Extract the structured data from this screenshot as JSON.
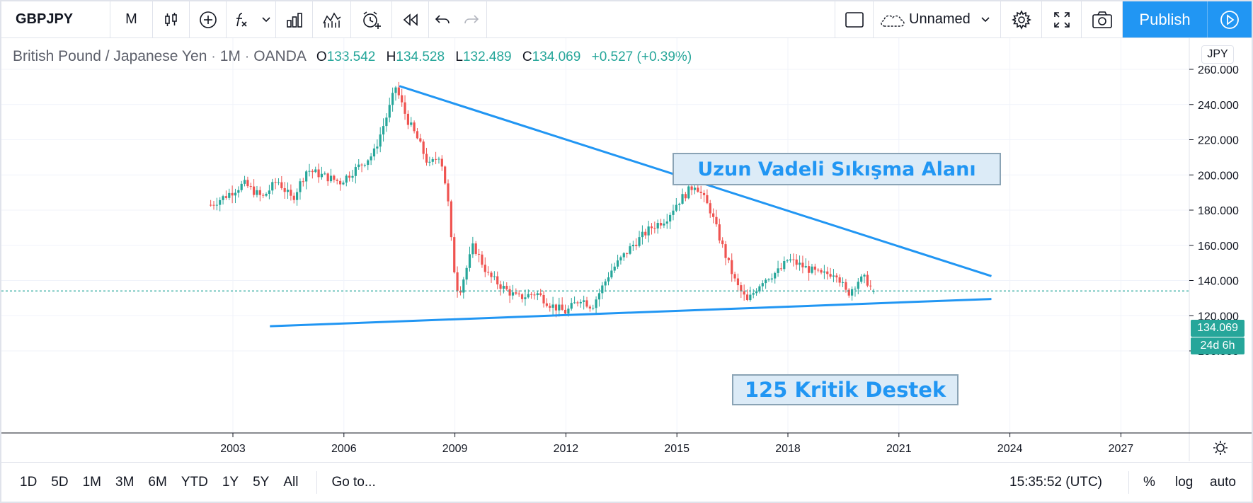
{
  "toolbar": {
    "symbol": "GBPJPY",
    "interval": "M",
    "layout_name": "Unnamed",
    "publish_label": "Publish"
  },
  "legend": {
    "name": "British Pound / Japanese Yen",
    "interval": "1M",
    "exchange": "OANDA",
    "o_label": "O",
    "o": "133.542",
    "h_label": "H",
    "h": "134.528",
    "l_label": "L",
    "l": "132.489",
    "c_label": "C",
    "c": "134.069",
    "change": "+0.527 (+0.39%)"
  },
  "currency": "JPY",
  "price_tag": {
    "last": "134.069",
    "countdown": "24d 6h"
  },
  "annotations": {
    "top": "Uzun Vadeli Sıkışma Alanı",
    "bottom": "125 Kritik Destek"
  },
  "colors": {
    "up": "#26a69a",
    "down": "#ef5350",
    "trendline": "#2196f3",
    "accent": "#2196f3"
  },
  "chart_data": {
    "type": "candlestick",
    "symbol": "GBPJPY",
    "interval": "1M",
    "yticks": [
      "100.000",
      "120.000",
      "140.000",
      "160.000",
      "180.000",
      "200.000",
      "220.000",
      "240.000",
      "260.000"
    ],
    "ylim": [
      80,
      270
    ],
    "xticks": [
      "2003",
      "2006",
      "2009",
      "2012",
      "2015",
      "2018",
      "2021",
      "2024",
      "2027"
    ],
    "xlim": [
      2000.4,
      2029.2
    ],
    "last_price": 134.069,
    "path": [
      [
        2002.4,
        183
      ],
      [
        2002.8,
        188
      ],
      [
        2003.3,
        195
      ],
      [
        2003.8,
        187
      ],
      [
        2004.2,
        197
      ],
      [
        2004.6,
        186
      ],
      [
        2005.0,
        203
      ],
      [
        2005.5,
        199
      ],
      [
        2005.9,
        196
      ],
      [
        2006.3,
        203
      ],
      [
        2006.8,
        212
      ],
      [
        2007.2,
        236
      ],
      [
        2007.4,
        250
      ],
      [
        2007.7,
        232
      ],
      [
        2008.0,
        220
      ],
      [
        2008.3,
        205
      ],
      [
        2008.6,
        212
      ],
      [
        2008.8,
        188
      ],
      [
        2008.95,
        150
      ],
      [
        2009.1,
        132
      ],
      [
        2009.5,
        160
      ],
      [
        2009.9,
        143
      ],
      [
        2010.3,
        136
      ],
      [
        2010.7,
        130
      ],
      [
        2011.2,
        133
      ],
      [
        2011.6,
        126
      ],
      [
        2012.0,
        122
      ],
      [
        2012.4,
        130
      ],
      [
        2012.7,
        125
      ],
      [
        2013.2,
        145
      ],
      [
        2013.8,
        160
      ],
      [
        2014.3,
        170
      ],
      [
        2014.7,
        175
      ],
      [
        2015.0,
        184
      ],
      [
        2015.5,
        195
      ],
      [
        2015.9,
        180
      ],
      [
        2016.3,
        155
      ],
      [
        2016.6,
        138
      ],
      [
        2016.9,
        128
      ],
      [
        2017.3,
        140
      ],
      [
        2017.8,
        146
      ],
      [
        2018.0,
        152
      ],
      [
        2018.5,
        147
      ],
      [
        2018.9,
        143
      ],
      [
        2019.3,
        145
      ],
      [
        2019.6,
        132
      ],
      [
        2019.9,
        140
      ],
      [
        2020.1,
        141
      ],
      [
        2020.3,
        134
      ]
    ],
    "trendlines": [
      {
        "x": [
          2007.5,
          2023.5
        ],
        "y": [
          250.5,
          142.5
        ]
      },
      {
        "x": [
          2004.0,
          2023.5
        ],
        "y": [
          114,
          129.5
        ]
      }
    ]
  }
}
